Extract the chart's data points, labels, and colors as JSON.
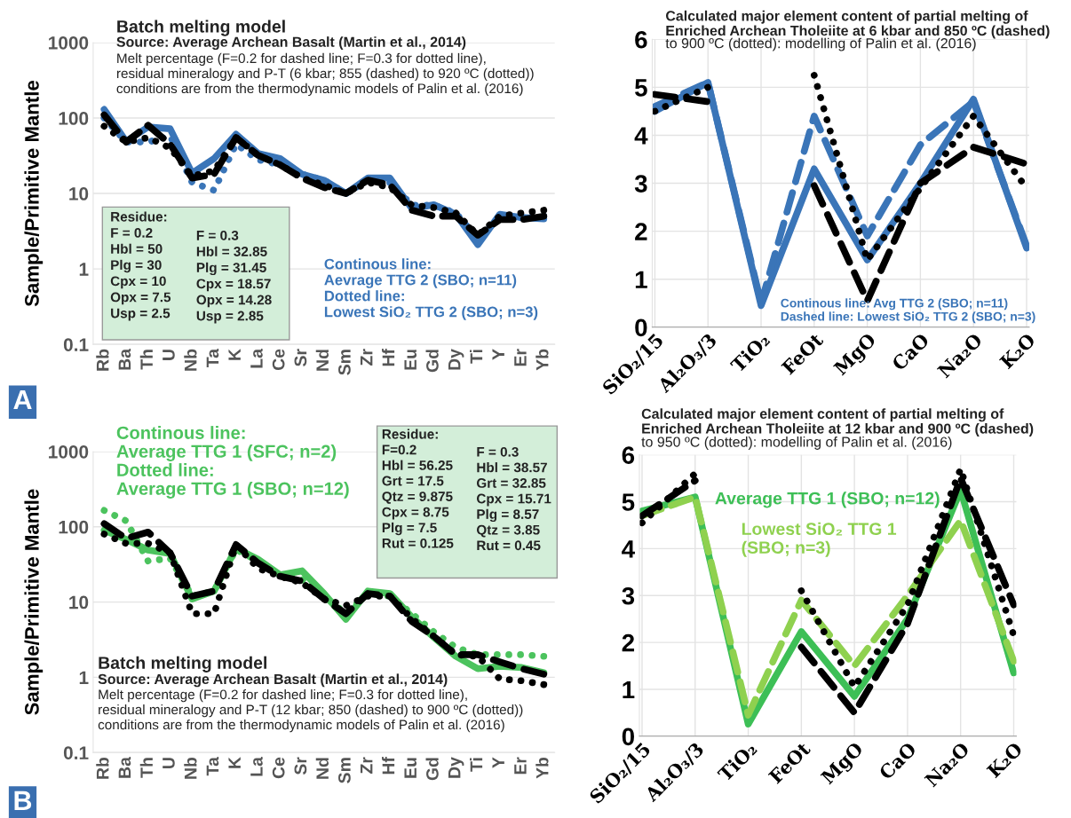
{
  "chart_data": [
    {
      "type": "line",
      "title": "Batch melting model",
      "subtitle": "Source: Average Archean Basalt (Martin et al., 2014)",
      "ylabel": "Sample/Primitive Mantle",
      "categories": [
        "Rb",
        "Ba",
        "Th",
        "U",
        "Nb",
        "Ta",
        "K",
        "La",
        "Ce",
        "Sr",
        "Nd",
        "Sm",
        "Zr",
        "Hf",
        "Eu",
        "Gd",
        "Dy",
        "Ti",
        "Y",
        "Er",
        "Yb"
      ],
      "series": [
        {
          "color": "#3a75b8",
          "line_style": "solid",
          "values": [
            130,
            49,
            76,
            72,
            18.6,
            29,
            61,
            34,
            29,
            18,
            15,
            10,
            16,
            16,
            6.3,
            7.1,
            5.3,
            2.1,
            5.3,
            4.8,
            4.6
          ]
        },
        {
          "color": "#3a75b8",
          "line_style": "dotted",
          "values": [
            100,
            48,
            48,
            58,
            14,
            11,
            45,
            28,
            24,
            18,
            15,
            10,
            15,
            14,
            7,
            7,
            5.5,
            2.5,
            5,
            4.8,
            5
          ]
        },
        {
          "color": "#000000",
          "line_style": "dashed",
          "values": [
            110,
            48,
            80,
            45,
            16,
            18,
            55,
            32,
            24,
            16,
            12,
            10,
            15,
            13,
            6,
            5,
            5,
            2.8,
            4.5,
            4.5,
            5
          ]
        },
        {
          "color": "#000000",
          "line_style": "dotted",
          "values": [
            78,
            48,
            55,
            40,
            17,
            20,
            55,
            32,
            24,
            16,
            13,
            10,
            14,
            12,
            7,
            6.5,
            5.5,
            2.8,
            5,
            5.5,
            6
          ]
        }
      ],
      "log": true,
      "ylim": [
        0.1,
        1000
      ],
      "yticks": [
        0.1,
        1,
        10,
        100,
        1000
      ],
      "grid": "y",
      "annotations": [
        "Melt percentage (F=0.2 for dashed line; F=0.3 for dotted line),\nresidual mineralogy and P-T (6 kbar; 855 (dashed) to 920 ºC (dotted))\nconditions are from the thermodynamic models of Palin et al. (2016)",
        "Residue:\nF = 0.2\nHbl = 50\nPlg = 30\nCpx = 10\nOpx = 7.5\nUsp = 2.5",
        "F = 0.3\nHbl = 32.85\nPlg = 31.45\nCpx = 18.57\nOpx = 14.28\nUsp = 2.85",
        "Continous line:\nAevrage TTG 2 (SBO; n=11)\nDotted line:\nLowest SiO₂ TTG 2 (SBO; n=3)",
        "A"
      ]
    },
    {
      "type": "line",
      "title": "Calculated major element content of partial melting of\nEnriched Archean Tholeiite at 6 kbar and 850 ºC (dashed)",
      "subtitle": "to 900 ºC (dotted): modelling of Palin et al. (2016)",
      "categories": [
        "SiO₂/15",
        "Al₂O₃/3",
        "TiO₂",
        "FeOt",
        "MgO",
        "CaO",
        "Na₂O",
        "K₂O"
      ],
      "series": [
        {
          "color": "#3a75b8",
          "line_style": "solid",
          "values": [
            4.5,
            5.1,
            0.45,
            3.3,
            1.4,
            3.0,
            4.75,
            1.65
          ]
        },
        {
          "color": "#3a75b8",
          "line_style": "dashed",
          "values": [
            4.6,
            5.1,
            0.5,
            4.4,
            1.9,
            3.8,
            4.7,
            1.7
          ]
        },
        {
          "color": "#000000",
          "line_style": "dashed",
          "values": [
            4.85,
            4.7,
            null,
            2.95,
            0.55,
            3.0,
            3.75,
            3.4
          ]
        },
        {
          "color": "#000000",
          "line_style": "dotted",
          "values": [
            4.5,
            5.0,
            null,
            5.25,
            1.4,
            2.9,
            4.4,
            2.9
          ]
        }
      ],
      "ylim": [
        0,
        6
      ],
      "yticks": [
        0,
        1,
        2,
        3,
        4,
        5,
        6
      ],
      "grid": true,
      "annotations": [
        "Continous line: Avg TTG 2 (SBO; n=11)\nDashed line: Lowest SiO₂ TTG 2 (SBO; n=3)"
      ]
    },
    {
      "type": "line",
      "title": "Batch melting model",
      "subtitle": "Source: Average Archean Basalt (Martin et al., 2014)",
      "ylabel": "Sample/Primitive Mantle",
      "categories": [
        "Rb",
        "Ba",
        "Th",
        "U",
        "Nb",
        "Ta",
        "K",
        "La",
        "Ce",
        "Sr",
        "Nd",
        "Sm",
        "Zr",
        "Hf",
        "Eu",
        "Gd",
        "Dy",
        "Ti",
        "Y",
        "Er",
        "Yb"
      ],
      "series": [
        {
          "color": "#4cc35e",
          "line_style": "solid",
          "values": [
            90,
            68,
            49,
            44,
            11,
            14,
            52,
            37,
            23,
            26,
            13,
            5.9,
            14,
            13,
            6.3,
            3.4,
            1.9,
            1.3,
            1.4,
            1.35,
            1.15
          ]
        },
        {
          "color": "#4cc35e",
          "line_style": "dotted",
          "values": [
            165,
            120,
            35,
            38,
            12,
            14,
            50,
            35,
            23,
            20,
            12,
            7,
            13,
            12,
            7,
            4,
            2.5,
            2,
            2,
            2,
            1.9
          ]
        },
        {
          "color": "#000000",
          "line_style": "dashed",
          "values": [
            110,
            70,
            85,
            45,
            12,
            14,
            58,
            33,
            22,
            19,
            11,
            7,
            13,
            12,
            5.5,
            3.5,
            2,
            2,
            1.6,
            1.3,
            1.1
          ]
        },
        {
          "color": "#000000",
          "line_style": "dotted",
          "values": [
            80,
            60,
            60,
            45,
            7,
            7,
            58,
            28,
            22,
            18,
            11,
            9,
            12,
            12,
            6,
            3.5,
            2,
            1.9,
            0.95,
            0.9,
            0.8
          ]
        }
      ],
      "log": true,
      "ylim": [
        0.1,
        1000
      ],
      "yticks": [
        0.1,
        1,
        10,
        100,
        1000
      ],
      "grid": "y",
      "annotations": [
        "Melt percentage (F=0.2 for dashed line; F=0.3 for dotted line),\nresidual mineralogy and P-T (12 kbar; 850 (dashed) to 900 ºC (dotted))\nconditions are from the thermodynamic models of Palin et al. (2016)",
        "Residue:\nF=0.2\nHbl = 56.25\nGrt = 17.5\nQtz = 9.875\nCpx = 8.75\nPlg = 7.5\nRut = 0.125",
        "F = 0.3\nHbl = 38.57\nGrt = 32.85\nCpx = 15.71\nPlg = 8.57\nQtz = 3.85\nRut = 0.45",
        "Continous line:\nAverage TTG 1 (SFC; n=2)\nDotted line:\nAverage TTG 1 (SBO; n=12)",
        "B"
      ]
    },
    {
      "type": "line",
      "title": "Calculated major element content of partial melting of\nEnriched Archean Tholeiite at 12 kbar and 900 ºC (dashed)",
      "subtitle": "to 950 ºC (dotted): modelling of Palin et al. (2016)",
      "categories": [
        "SiO₂/15",
        "Al₂O₃/3",
        "TiO₂",
        "FeOt",
        "MgO",
        "CaO",
        "Na₂O",
        "K₂O"
      ],
      "series": [
        {
          "color": "#3dbf56",
          "line_style": "solid",
          "values": [
            4.8,
            5.1,
            0.26,
            2.23,
            0.85,
            2.5,
            5.25,
            1.35
          ]
        },
        {
          "color": "#8fd14f",
          "line_style": "dashed",
          "values": [
            4.7,
            5.1,
            0.45,
            2.9,
            1.5,
            3.0,
            4.6,
            1.6
          ]
        },
        {
          "color": "#000000",
          "line_style": "dashed",
          "values": [
            4.7,
            5.45,
            null,
            1.9,
            0.5,
            2.4,
            5.5,
            2.8
          ]
        },
        {
          "color": "#000000",
          "line_style": "dotted",
          "values": [
            4.55,
            5.6,
            null,
            3.1,
            1.05,
            2.8,
            5.7,
            2.15
          ]
        }
      ],
      "ylim": [
        0,
        6
      ],
      "yticks": [
        0,
        1,
        2,
        3,
        4,
        5,
        6
      ],
      "grid": true,
      "annotations": [
        "Average TTG 1 (SBO; n=12)",
        "Lowest SiO₂ TTG 1\n(SBO; n=3)"
      ]
    }
  ]
}
